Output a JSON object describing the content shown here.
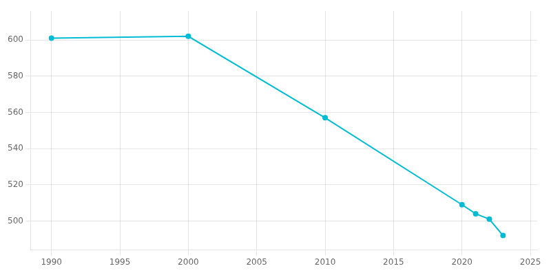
{
  "chart_data": {
    "type": "line",
    "x": [
      1990,
      2000,
      2010,
      2020,
      2021,
      2022,
      2023
    ],
    "values": [
      601,
      602,
      557,
      509,
      504,
      501,
      492
    ],
    "color": "#00BCD4",
    "marker": "circle",
    "xlim": [
      1988.5,
      2025.5
    ],
    "xticks": [
      1990,
      1995,
      2000,
      2005,
      2010,
      2015,
      2020,
      2025
    ],
    "ylim": [
      484,
      616
    ],
    "yticks": [
      500,
      520,
      540,
      560,
      580,
      600
    ],
    "grid": true
  }
}
